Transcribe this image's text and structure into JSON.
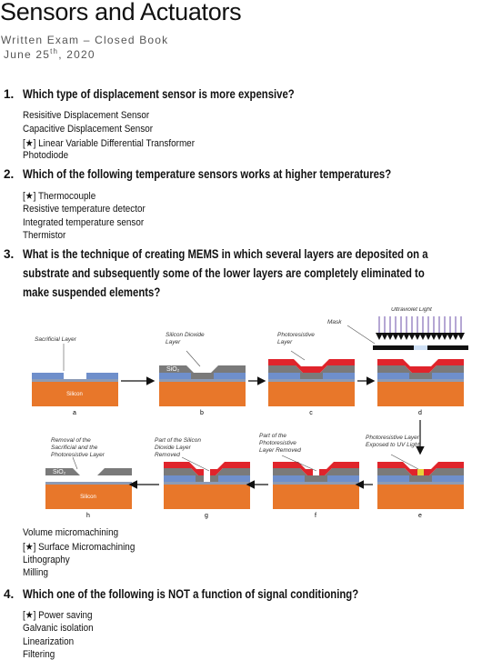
{
  "header": {
    "title": "Sensors and Actuators",
    "subtitle": "Written Exam – Closed Book",
    "date": [
      "June 25",
      "th",
      ", 2020"
    ]
  },
  "questions": [
    {
      "number": "1.",
      "text": [
        "Which type of displacement sensor is more expensive?"
      ],
      "options": [
        "Resisitive Displacement Sensor",
        "Capacitive Displacement Sensor",
        "[★] Linear Variable Differential Transformer",
        "Photodiode"
      ]
    },
    {
      "number": "2.",
      "text": [
        "Which of the following temperature sensors works at higher temperatures?"
      ],
      "options": [
        "[★] Thermocouple",
        "Resistive temperature detector",
        "Integrated temperature sensor",
        "Thermistor"
      ]
    },
    {
      "number": "3.",
      "text": [
        "What is the technique of creating MEMS in which several layers are deposited on a",
        "substrate and subsequently some of the lower layers are completely eliminated to",
        "make suspended elements?"
      ],
      "options": [
        "Volume micromachining",
        "[★] Surface Micromachining",
        "Lithography",
        "Milling"
      ]
    },
    {
      "number": "4.",
      "text": [
        "Which one of the following is NOT a function of signal conditioning?"
      ],
      "options": [
        "[★] Power saving",
        "Galvanic isolation",
        "Linearization",
        "Filtering"
      ]
    }
  ],
  "figure": {
    "panels": [
      {
        "letter": "a",
        "text": [
          "Silicon"
        ]
      },
      {
        "letter": "b",
        "text": [
          "SiO₂"
        ]
      },
      {
        "letter": "c",
        "text": []
      },
      {
        "letter": "d",
        "text": []
      },
      {
        "letter": "e",
        "text": []
      },
      {
        "letter": "f",
        "text": []
      },
      {
        "letter": "g",
        "text": []
      },
      {
        "letter": "h",
        "text": [
          "SiO₂",
          "Silicon"
        ]
      }
    ],
    "annotations": [
      {
        "lines": [
          "Sacrificial Layer"
        ]
      },
      {
        "lines": [
          "Silicon Dioxide",
          "Layer"
        ]
      },
      {
        "lines": [
          "Photoresistive",
          "Layer"
        ]
      },
      {
        "lines": [
          "Mask"
        ]
      },
      {
        "lines": [
          "Ultraviolet Light"
        ]
      },
      {
        "lines": [
          "Photoresistive Layer",
          "Exposed to UV Light"
        ]
      },
      {
        "lines": [
          "Part of the",
          "Photoresistive",
          "Layer Removed"
        ]
      },
      {
        "lines": [
          "Part of the Silicon",
          "Dioxide Layer",
          "Removed"
        ]
      },
      {
        "lines": [
          "Removal of the",
          "Sacrificial and the",
          "Photoresistive Layer"
        ]
      }
    ]
  }
}
